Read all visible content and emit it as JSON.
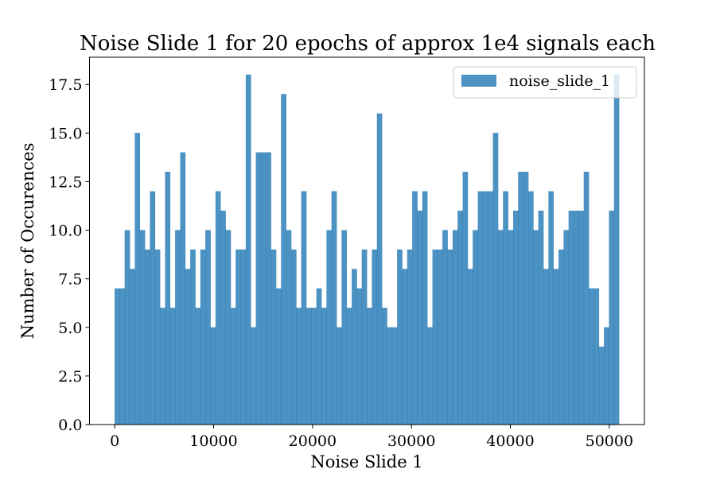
{
  "chart_data": {
    "type": "bar",
    "title": "Noise Slide 1 for 20 epochs of approx 1e4 signals each",
    "xlabel": "Noise Slide 1",
    "ylabel": "Number of Occurences",
    "xlim": [
      -2550,
      53550
    ],
    "ylim": [
      0,
      18.9
    ],
    "xticks": [
      0,
      10000,
      20000,
      30000,
      40000,
      50000
    ],
    "xtick_labels": [
      "0",
      "10000",
      "20000",
      "30000",
      "40000",
      "50000"
    ],
    "yticks": [
      0,
      2.5,
      5,
      7.5,
      10,
      12.5,
      15,
      17.5
    ],
    "ytick_labels": [
      "0.0",
      "2.5",
      "5.0",
      "7.5",
      "10.0",
      "12.5",
      "15.0",
      "17.5"
    ],
    "grid": false,
    "legend_position": "top-right",
    "bin_start": 0,
    "bin_width": 510,
    "series": [
      {
        "name": "noise_slide_1",
        "color": "#1f77b4",
        "opacity": 0.8,
        "values": [
          7,
          7,
          10,
          8,
          15,
          10,
          9,
          12,
          9,
          6,
          13,
          6,
          10,
          14,
          8,
          9,
          6,
          9,
          10,
          5,
          12,
          11,
          10,
          6,
          9,
          9,
          18,
          5,
          14,
          14,
          14,
          9,
          7,
          17,
          10,
          9,
          6,
          12,
          6,
          6,
          7,
          6,
          10,
          12,
          5,
          10,
          6,
          8,
          7,
          9,
          6,
          9,
          16,
          6,
          5,
          5,
          9,
          8,
          9,
          12,
          11,
          12,
          5,
          9,
          9,
          10,
          9,
          10,
          11,
          13,
          8,
          10,
          12,
          12,
          12,
          15,
          10,
          12,
          10,
          11,
          13,
          13,
          12,
          10,
          11,
          8,
          12,
          8,
          9,
          10,
          11,
          11,
          11,
          13,
          7,
          7,
          4,
          5,
          11,
          18
        ]
      }
    ]
  }
}
